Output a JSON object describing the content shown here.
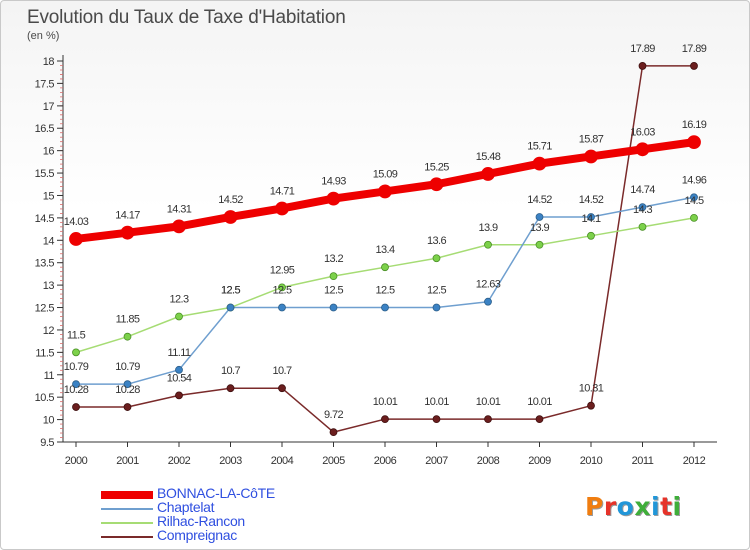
{
  "title": "Evolution du Taux de Taxe d'Habitation",
  "unit_label": "(en %)",
  "logo": {
    "text": "Proxiti",
    "colors": [
      "#f07d10",
      "#e6332a",
      "#2196d8",
      "#3fae3a",
      "#2196d8",
      "#e6332a",
      "#3fae3a"
    ]
  },
  "chart_data": {
    "type": "line",
    "title": "Evolution du Taux de Taxe d'Habitation",
    "ylabel": "(en %)",
    "x": [
      "2000",
      "2001",
      "2002",
      "2003",
      "2004",
      "2005",
      "2006",
      "2007",
      "2008",
      "2009",
      "2010",
      "2011",
      "2012"
    ],
    "ylim": [
      9.5,
      18
    ],
    "yticks": [
      "9.5",
      "10",
      "10.5",
      "11",
      "11.5",
      "12",
      "12.5",
      "13",
      "13.5",
      "14",
      "14.5",
      "15",
      "15.5",
      "16",
      "16.5",
      "17",
      "17.5",
      "18"
    ],
    "grid": false,
    "legend": "bottom-left",
    "series": [
      {
        "name": "BONNAC-LA-CôTE",
        "color": "#ee0000",
        "values": [
          14.03,
          14.17,
          14.31,
          14.52,
          14.71,
          14.93,
          15.09,
          15.25,
          15.48,
          15.71,
          15.87,
          16.03,
          16.19
        ],
        "labels": [
          "14.03",
          "14.17",
          "14.31",
          "14.52",
          "14.71",
          "14.93",
          "15.09",
          "15.25",
          "15.48",
          "15.71",
          "15.87",
          "16.03",
          "16.19"
        ]
      },
      {
        "name": "Chaptelat",
        "color": "#6f9fcf",
        "values": [
          10.79,
          10.79,
          11.11,
          12.5,
          12.5,
          12.5,
          12.5,
          12.5,
          12.63,
          14.52,
          14.52,
          14.74,
          14.96
        ],
        "labels": [
          "10.79",
          "10.79",
          "11.11",
          "12.5",
          "12.5",
          "12.5",
          "12.5",
          "12.5",
          "12.63",
          "14.52",
          "14.52",
          "14.74",
          "14.96"
        ]
      },
      {
        "name": "Rilhac-Rancon",
        "color": "#a6dc74",
        "values": [
          11.5,
          11.85,
          12.3,
          12.5,
          12.95,
          13.2,
          13.4,
          13.6,
          13.9,
          13.9,
          14.1,
          14.3,
          14.5
        ],
        "labels": [
          "11.5",
          "11.85",
          "12.3",
          "12.5",
          "12.95",
          "13.2",
          "13.4",
          "13.6",
          "13.9",
          "13.9",
          "14.1",
          "14.3",
          "14.5"
        ]
      },
      {
        "name": "Compreignac",
        "color": "#7a2a2a",
        "values": [
          10.28,
          10.28,
          10.54,
          10.7,
          10.7,
          9.72,
          10.01,
          10.01,
          10.01,
          10.01,
          10.31,
          17.89,
          17.89
        ],
        "labels": [
          "10.28",
          "10.28",
          "10.54",
          "10.7",
          "10.7",
          "9.72",
          "10.01",
          "10.01",
          "10.01",
          "10.01",
          "10.31",
          "17.89",
          "17.89"
        ]
      }
    ]
  }
}
